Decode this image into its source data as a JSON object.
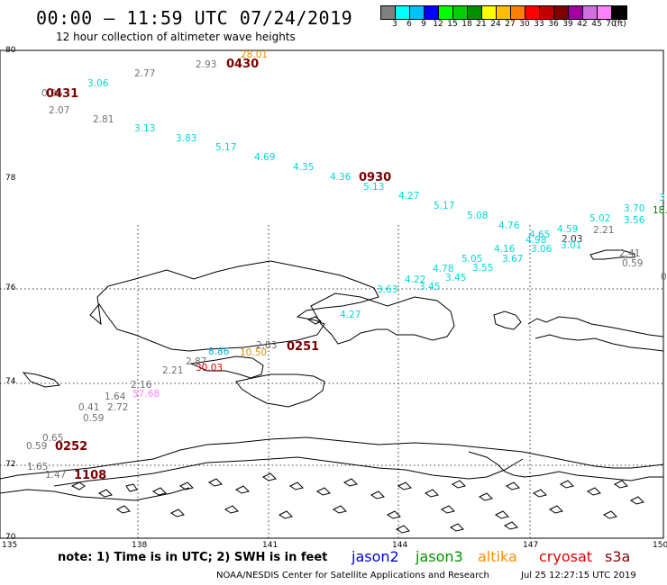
{
  "header": {
    "title": "00:00 — 11:59 UTC 07/24/2019",
    "subtitle": "12 hour collection of altimeter wave heights"
  },
  "legend": {
    "colors": [
      "#808080",
      "#00ffff",
      "#00c0ff",
      "#0000ff",
      "#00ff00",
      "#00d000",
      "#009000",
      "#ffff00",
      "#ffc000",
      "#ff8000",
      "#ff0000",
      "#c00000",
      "#800000",
      "#a000a0",
      "#d070e0",
      "#ff80ff",
      "#000000"
    ],
    "labels": [
      "3",
      "6",
      "9",
      "12",
      "15",
      "18",
      "21",
      "24",
      "27",
      "30",
      "33",
      "36",
      "39",
      "42",
      "45",
      "70",
      "(ft)"
    ]
  },
  "axes": {
    "lat_labels": [
      "80",
      "78",
      "76",
      "74",
      "72",
      "70"
    ],
    "lon_labels": [
      "135",
      "138",
      "141",
      "144",
      "147",
      "150"
    ]
  },
  "wave_labels": [
    {
      "t": "0.96",
      "c": "#707070"
    },
    {
      "t": "3.06",
      "c": "#00d8d8"
    },
    {
      "t": "2.07",
      "c": "#707070"
    },
    {
      "t": "2.81",
      "c": "#707070"
    },
    {
      "t": "2.77",
      "c": "#707070"
    },
    {
      "t": "2.93",
      "c": "#707070"
    },
    {
      "t": "28.01",
      "c": "#e09000"
    },
    {
      "t": "3.13",
      "c": "#00d8d8"
    },
    {
      "t": "3.83",
      "c": "#00d8d8"
    },
    {
      "t": "5.17",
      "c": "#00d8d8"
    },
    {
      "t": "4.69",
      "c": "#00d8d8"
    },
    {
      "t": "4.35",
      "c": "#00d8d8"
    },
    {
      "t": "4.36",
      "c": "#00d8d8"
    },
    {
      "t": "5.13",
      "c": "#00d8d8"
    },
    {
      "t": "4.27",
      "c": "#00d8d8"
    },
    {
      "t": "5.17",
      "c": "#00d8d8"
    },
    {
      "t": "5.08",
      "c": "#00d8d8"
    },
    {
      "t": "4.76",
      "c": "#00d8d8"
    },
    {
      "t": "4.65",
      "c": "#00d8d8"
    },
    {
      "t": "4.98",
      "c": "#00d8d8"
    },
    {
      "t": "4.59",
      "c": "#00d8d8"
    },
    {
      "t": "5.02",
      "c": "#00d8d8"
    },
    {
      "t": "3.70",
      "c": "#00d8d8"
    },
    {
      "t": "3",
      "c": "#00d8d8"
    },
    {
      "t": "18.",
      "c": "#008000"
    },
    {
      "t": "3.56",
      "c": "#00d8d8"
    },
    {
      "t": "2.21",
      "c": "#707070"
    },
    {
      "t": "2.03",
      "c": "#303030"
    },
    {
      "t": "3.01",
      "c": "#00d8d8"
    },
    {
      "t": "3.06",
      "c": "#00d8d8"
    },
    {
      "t": "4.16",
      "c": "#00d8d8"
    },
    {
      "t": "3.67",
      "c": "#00d8d8"
    },
    {
      "t": "5.05",
      "c": "#00d8d8"
    },
    {
      "t": "3.55",
      "c": "#00d8d8"
    },
    {
      "t": "4.78",
      "c": "#00d8d8"
    },
    {
      "t": "3.45",
      "c": "#00d8d8"
    },
    {
      "t": "4.22",
      "c": "#00d8d8"
    },
    {
      "t": "3.45",
      "c": "#00d8d8"
    },
    {
      "t": "3.63",
      "c": "#00d8d8"
    },
    {
      "t": "2.41",
      "c": "#707070"
    },
    {
      "t": "0.59",
      "c": "#707070"
    },
    {
      "t": "0",
      "c": "#707070"
    },
    {
      "t": "4.27",
      "c": "#00d8d8"
    },
    {
      "t": "2.83",
      "c": "#707070"
    },
    {
      "t": "8.86",
      "c": "#00b0e0"
    },
    {
      "t": "10.50",
      "c": "#e09000"
    },
    {
      "t": "2.87",
      "c": "#707070"
    },
    {
      "t": "30.03",
      "c": "#e00000"
    },
    {
      "t": "2.21",
      "c": "#707070"
    },
    {
      "t": "2.16",
      "c": "#707070"
    },
    {
      "t": "57.68",
      "c": "#ff80ff"
    },
    {
      "t": "1.64",
      "c": "#707070"
    },
    {
      "t": "0.41",
      "c": "#707070"
    },
    {
      "t": "2.72",
      "c": "#707070"
    },
    {
      "t": "0.59",
      "c": "#707070"
    },
    {
      "t": "0.65",
      "c": "#707070"
    },
    {
      "t": "0.59",
      "c": "#707070"
    },
    {
      "t": "1.65",
      "c": "#707070"
    },
    {
      "t": "1.47",
      "c": "#707070"
    }
  ],
  "time_labels": [
    "0431",
    "0430",
    "0930",
    "0251",
    "0252",
    "1108"
  ],
  "footer": {
    "note": "note: 1) Time is in UTC; 2) SWH is in feet",
    "satellites": [
      {
        "name": "jason2",
        "color": "#0000dd"
      },
      {
        "name": "jason3",
        "color": "#009000"
      },
      {
        "name": "altika",
        "color": "#ff9000"
      },
      {
        "name": "cryosat",
        "color": "#e00000"
      },
      {
        "name": "s3a",
        "color": "#8b0000"
      }
    ],
    "credit": "NOAA/NESDIS Center for Satellite Applications and Research",
    "timestamp": "Jul 25 12:27:15 UTC 2019"
  }
}
